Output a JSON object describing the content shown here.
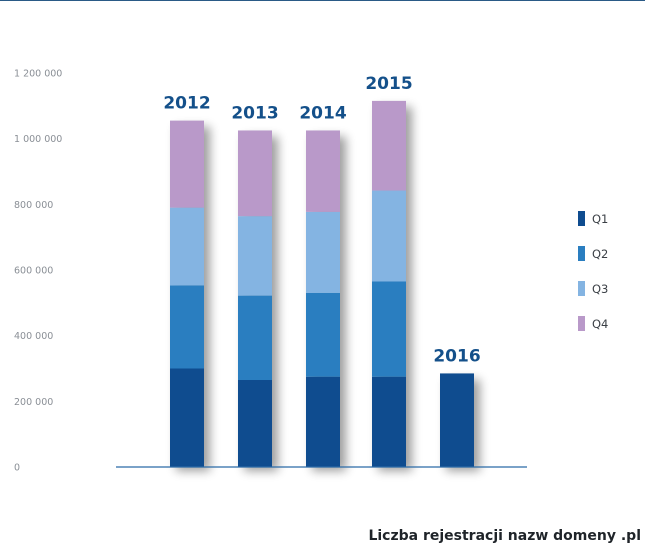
{
  "chart_data": {
    "type": "bar",
    "stacked": true,
    "categories": [
      "2012",
      "2013",
      "2014",
      "2015",
      "2016"
    ],
    "series": [
      {
        "name": "Q1",
        "color": "#0f4c8f",
        "values": [
          300000,
          265000,
          275000,
          275000,
          285000
        ]
      },
      {
        "name": "Q2",
        "color": "#2a7ec0",
        "values": [
          253000,
          257000,
          255000,
          290000,
          0
        ]
      },
      {
        "name": "Q3",
        "color": "#84b4e2",
        "values": [
          237000,
          242000,
          247000,
          277000,
          0
        ]
      },
      {
        "name": "Q4",
        "color": "#b999c9",
        "values": [
          265000,
          261000,
          248000,
          273000,
          0
        ]
      }
    ],
    "ylim": [
      0,
      1200000
    ],
    "yticks": [
      0,
      200000,
      400000,
      600000,
      800000,
      1000000,
      1200000
    ],
    "ytick_labels": [
      "0",
      "200 000",
      "400 000",
      "600 000",
      "800 000",
      "1 000 000",
      "1 200 000"
    ],
    "grid": false,
    "legend": "right",
    "title": "Liczba rejestracji nazw domeny .pl",
    "xlabel": "",
    "ylabel": ""
  }
}
